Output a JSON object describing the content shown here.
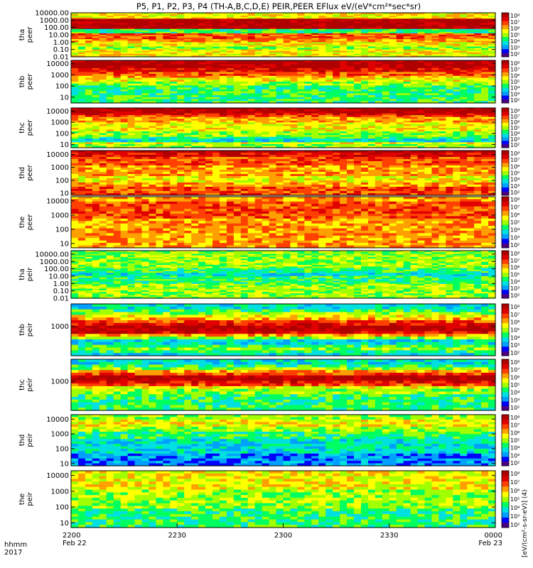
{
  "title": "P5, P1, P2, P3, P4 (TH-A,B,C,D,E) PEIR,PEER EFlux eV/(eV*cm²*sec*sr)",
  "colorbar_unit_label": "[eV/(cm²-s-sr-eV)] (4)",
  "time_axis": {
    "label_line1": "hhmm",
    "label_line2": "2017",
    "ticks": [
      {
        "label": "2200",
        "date": "Feb 22",
        "minutes": 0
      },
      {
        "label": "2230",
        "date": "",
        "minutes": 30
      },
      {
        "label": "2300",
        "date": "",
        "minutes": 60
      },
      {
        "label": "2330",
        "date": "",
        "minutes": 90
      },
      {
        "label": "0000",
        "date": "Feb 23",
        "minutes": 120
      }
    ]
  },
  "colors": {
    "colormap": [
      "#4b0082",
      "#0000ff",
      "#00a0ff",
      "#00e0e0",
      "#00ff60",
      "#a0ff00",
      "#ffff00",
      "#ffa000",
      "#ff4000",
      "#e00000",
      "#b00000"
    ],
    "fill_value": "#000000"
  },
  "chart_data": [
    {
      "type": "heatmap",
      "probe": "tha",
      "product": "peer",
      "ylabel_line1": "tha",
      "ylabel_line2": "peer",
      "ylim": [
        0.01,
        10000
      ],
      "yticks": [
        "10000.00",
        "1000.00",
        "100.00",
        "10.00",
        "1.00",
        "0.10",
        "0.01"
      ],
      "colorbar_ticks": [
        "10⁸",
        "10⁷",
        "10⁶",
        "10⁵",
        "10⁴",
        "10³",
        "10²"
      ],
      "profile": [
        6,
        6,
        6,
        6,
        10,
        10,
        10,
        10,
        10,
        10,
        10,
        4,
        4,
        4,
        8,
        8,
        8,
        8,
        7,
        7,
        6,
        6,
        6,
        5,
        5,
        6,
        6,
        6,
        6,
        6
      ]
    },
    {
      "type": "heatmap",
      "probe": "thb",
      "product": "peer",
      "ylabel_line1": "thb",
      "ylabel_line2": "peer",
      "ylim": [
        3,
        20000
      ],
      "yticks": [
        "10000",
        "1000",
        "100",
        "10"
      ],
      "colorbar_ticks": [
        "10⁸",
        "10⁷",
        "10⁶",
        "10⁵",
        "10⁴",
        "10³",
        "10²"
      ],
      "profile": [
        10,
        10,
        10,
        10,
        9,
        9,
        8,
        8,
        7,
        6,
        6,
        5,
        5,
        4,
        4,
        4,
        4,
        4,
        4,
        4,
        4,
        4
      ]
    },
    {
      "type": "heatmap",
      "probe": "thc",
      "product": "peer",
      "ylabel_line1": "thc",
      "ylabel_line2": "peer",
      "ylim": [
        5,
        20000
      ],
      "yticks": [
        "10000",
        "1000",
        "100",
        "10"
      ],
      "colorbar_ticks": [
        "10⁸",
        "10⁷",
        "10⁶",
        "10⁵",
        "10⁴",
        "10³",
        "10²"
      ],
      "profile": [
        10,
        10,
        10,
        9,
        8,
        7,
        7,
        7,
        6,
        6,
        6,
        6,
        6,
        5,
        5,
        5,
        4,
        3,
        3,
        6,
        5,
        5
      ]
    },
    {
      "type": "heatmap",
      "probe": "thd",
      "product": "peer",
      "ylabel_line1": "thd",
      "ylabel_line2": "peer",
      "ylim": [
        7,
        20000
      ],
      "yticks": [
        "10000",
        "1000",
        "100",
        "10"
      ],
      "colorbar_ticks": [
        "10⁸",
        "10⁷",
        "10⁶",
        "10⁵",
        "10⁴",
        "10³",
        "10²"
      ],
      "profile": [
        10,
        9,
        9,
        8,
        8,
        8,
        8,
        7,
        7,
        7,
        7,
        7,
        6,
        6,
        6,
        7,
        7,
        8,
        8,
        8,
        8
      ]
    },
    {
      "type": "heatmap",
      "probe": "the",
      "product": "peer",
      "ylabel_line1": "the",
      "ylabel_line2": "peer",
      "ylim": [
        5,
        20000
      ],
      "yticks": [
        "10000",
        "1000",
        "100",
        "10"
      ],
      "colorbar_ticks": [
        "10⁸",
        "10⁷",
        "10⁶",
        "10⁵",
        "10⁴",
        "10³",
        "10²"
      ],
      "profile": [
        7,
        7,
        8,
        8,
        8,
        8,
        8,
        8,
        8,
        7,
        7,
        7,
        7,
        7,
        7,
        7,
        7,
        7,
        7,
        7,
        7
      ]
    },
    {
      "type": "heatmap",
      "probe": "tha",
      "product": "peir",
      "ylabel_line1": "tha",
      "ylabel_line2": "peir",
      "ylim": [
        0.01,
        30000
      ],
      "yticks": [
        "10000.00",
        "1000.00",
        "100.00",
        "10.00",
        "1.00",
        "0.10",
        "0.01"
      ],
      "colorbar_ticks": [
        "10⁸",
        "10⁷",
        "10⁶",
        "10⁵",
        "10⁴",
        "10³",
        "10²"
      ],
      "profile": [
        5,
        5,
        5,
        5,
        5,
        5,
        5,
        5,
        5,
        5,
        5,
        4,
        4,
        4,
        3,
        3,
        4,
        4,
        4,
        4,
        4,
        5,
        5,
        5,
        5,
        5,
        5,
        5,
        5,
        5
      ]
    },
    {
      "type": "heatmap",
      "probe": "thb",
      "product": "peir",
      "ylabel_line1": "thb",
      "ylabel_line2": "peir",
      "ylim": [
        20,
        20000
      ],
      "yticks": [
        "1000"
      ],
      "colorbar_ticks": [
        "10⁸",
        "10⁷",
        "10⁶",
        "10⁵",
        "10⁴",
        "10³",
        "10²"
      ],
      "profile": [
        3,
        3,
        4,
        5,
        6,
        7,
        8,
        9,
        10,
        10,
        9,
        7,
        5,
        3,
        3,
        4,
        5,
        4,
        3
      ]
    },
    {
      "type": "heatmap",
      "probe": "thc",
      "product": "peir",
      "ylabel_line1": "thc",
      "ylabel_line2": "peir",
      "ylim": [
        20,
        20000
      ],
      "yticks": [
        "1000"
      ],
      "colorbar_ticks": [
        "10⁸",
        "10⁷",
        "10⁶",
        "10⁵",
        "10⁴",
        "10³",
        "10²"
      ],
      "profile": [
        3,
        3,
        4,
        5,
        7,
        8,
        10,
        10,
        9,
        8,
        6,
        5,
        5,
        4,
        4,
        4,
        4,
        4,
        4
      ]
    },
    {
      "type": "heatmap",
      "probe": "thd",
      "product": "peir",
      "ylabel_line1": "thd",
      "ylabel_line2": "peir",
      "ylim": [
        7,
        20000
      ],
      "yticks": [
        "10000",
        "1000",
        "100",
        "10"
      ],
      "colorbar_ticks": [
        "10⁸",
        "10⁷",
        "10⁶",
        "10⁵",
        "10⁴",
        "10³",
        "10²"
      ],
      "profile": [
        5,
        5,
        6,
        6,
        6,
        5,
        5,
        4,
        4,
        4,
        3,
        3,
        3,
        3,
        3,
        3,
        2,
        2,
        2,
        2,
        2
      ]
    },
    {
      "type": "heatmap",
      "probe": "the",
      "product": "peir",
      "ylabel_line1": "the",
      "ylabel_line2": "peir",
      "ylim": [
        5,
        20000
      ],
      "yticks": [
        "10000",
        "1000",
        "100",
        "10"
      ],
      "colorbar_ticks": [
        "10⁸",
        "10⁷",
        "10⁶",
        "10⁵",
        "10⁴",
        "10³",
        "10²"
      ],
      "profile": [
        6,
        6,
        6,
        6,
        6,
        6,
        6,
        5,
        5,
        5,
        5,
        5,
        5,
        5,
        4,
        4,
        4,
        4,
        4,
        4,
        4
      ]
    }
  ]
}
